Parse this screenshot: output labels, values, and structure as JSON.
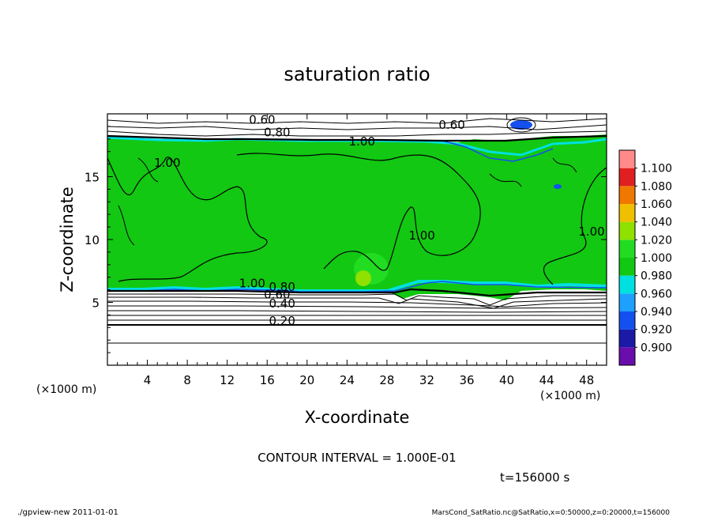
{
  "chart_data": {
    "type": "heatmap",
    "title": "saturation ratio",
    "xlabel": "X-coordinate",
    "ylabel": "Z-coordinate",
    "x_unit": "(×1000 m)",
    "y_unit": "(×1000 m)",
    "xlim": [
      0,
      50
    ],
    "ylim": [
      0,
      20
    ],
    "x_ticks": [
      4,
      8,
      12,
      16,
      20,
      24,
      28,
      32,
      36,
      40,
      44,
      48
    ],
    "y_ticks": [
      5,
      10,
      15
    ],
    "colorbar": {
      "levels": [
        "0.900",
        "0.920",
        "0.940",
        "0.960",
        "0.980",
        "1.000",
        "1.020",
        "1.040",
        "1.060",
        "1.080",
        "1.100"
      ],
      "colors": [
        "#6a0dad",
        "#1a1aa6",
        "#1450f0",
        "#1ea0ff",
        "#00e0e0",
        "#12c812",
        "#22dc22",
        "#90e000",
        "#f0c000",
        "#f07800",
        "#e02020",
        "#ff8a8a"
      ]
    },
    "contour_labels": [
      {
        "text": "0.60",
        "x": 15.5,
        "z": 19.2
      },
      {
        "text": "0.60",
        "x": 34.5,
        "z": 18.8
      },
      {
        "text": "0.80",
        "x": 17,
        "z": 18.2
      },
      {
        "text": "1.00",
        "x": 25.5,
        "z": 17.5
      },
      {
        "text": "1.00",
        "x": 6,
        "z": 15.8
      },
      {
        "text": "1.00",
        "x": 31.5,
        "z": 10
      },
      {
        "text": "1.00",
        "x": 48.5,
        "z": 10.3
      },
      {
        "text": "1.00",
        "x": 14.5,
        "z": 6.2
      },
      {
        "text": "0.80",
        "x": 17.5,
        "z": 5.9
      },
      {
        "text": "0.60",
        "x": 17,
        "z": 5.3
      },
      {
        "text": "0.40",
        "x": 17.5,
        "z": 4.6
      },
      {
        "text": "0.20",
        "x": 17.5,
        "z": 3.2
      }
    ],
    "contour_interval": "CONTOUR INTERVAL = 1.000E-01",
    "time_label": "t=156000 s"
  },
  "footer": {
    "left": "./gpview-new   2011-01-01",
    "right": "MarsCond_SatRatio.nc@SatRatio,x=0:50000,z=0:20000,t=156000"
  }
}
